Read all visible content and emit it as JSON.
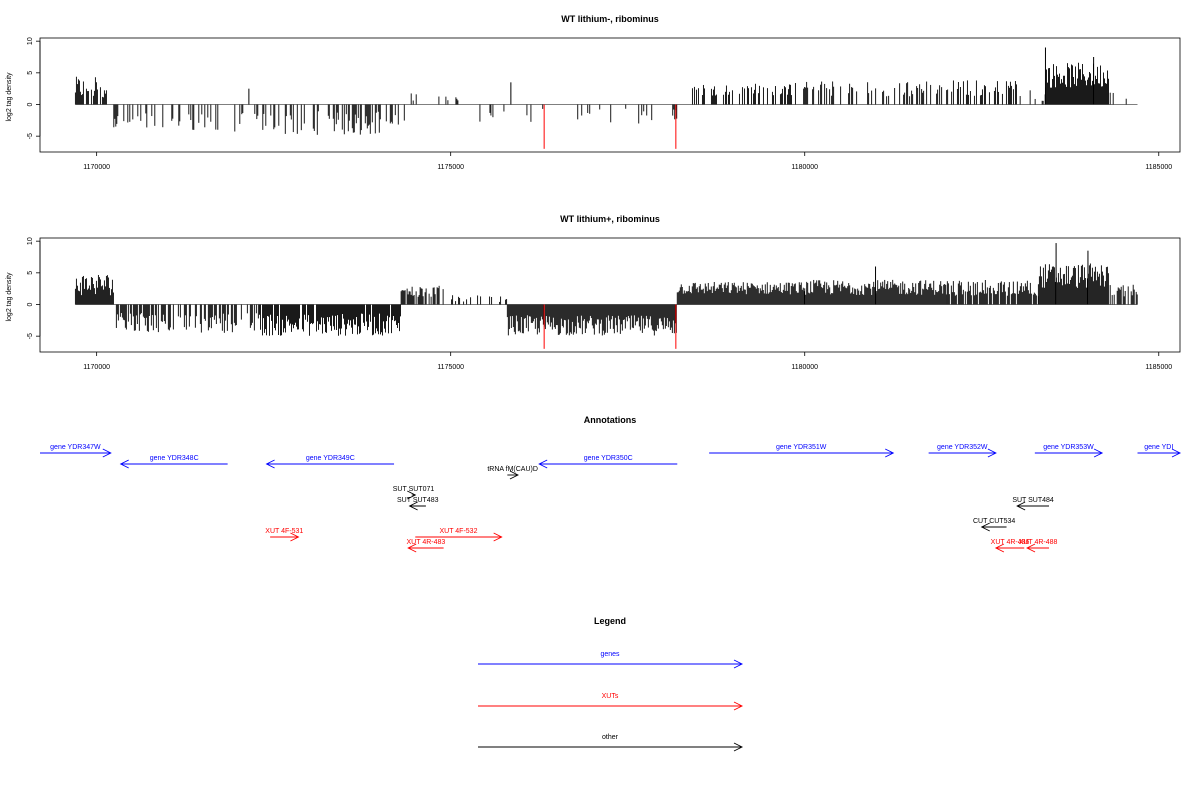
{
  "chart_data": [
    {
      "type": "bar",
      "title": "WT lithium-, ribominus",
      "xlabel": "",
      "ylabel": "log2 tag density",
      "xlim": [
        1169200,
        1185300
      ],
      "ylim": [
        -7.5,
        10.5
      ],
      "x_ticks": [
        1170000,
        1175000,
        1180000,
        1185000
      ],
      "x_tick_labels": [
        "1170000",
        "1175000",
        "1180000",
        "1185000"
      ],
      "y_ticks": [
        -5,
        0,
        5,
        10
      ],
      "y_tick_labels": [
        "-5",
        "0",
        "5",
        "10"
      ],
      "baseline": {
        "x_start": 1169700,
        "x_end": 1184700,
        "y": 0
      },
      "series": [
        {
          "color": "#000000",
          "segments": [
            {
              "x_start": 1169700,
              "x_end": 1170150,
              "mean": 2.6,
              "spread": 1.8,
              "density": 0.8
            },
            {
              "x_start": 1170200,
              "x_end": 1172600,
              "mean": -2.8,
              "spread": 1.6,
              "density": 0.3
            },
            {
              "x_start": 1172650,
              "x_end": 1174350,
              "mean": -2.9,
              "spread": 1.9,
              "density": 0.45
            },
            {
              "x_start": 1174400,
              "x_end": 1174650,
              "mean": 1.2,
              "spread": 0.8,
              "density": 0.15
            },
            {
              "x_start": 1174650,
              "x_end": 1175300,
              "mean": 0.8,
              "spread": 0.5,
              "density": 0.05
            },
            {
              "x_start": 1175300,
              "x_end": 1176300,
              "mean": -2.2,
              "spread": 1.4,
              "density": 0.15
            },
            {
              "x_start": 1176300,
              "x_end": 1178200,
              "mean": -1.8,
              "spread": 1.2,
              "density": 0.12
            },
            {
              "x_start": 1178400,
              "x_end": 1179900,
              "mean": 2.4,
              "spread": 1.0,
              "density": 0.35
            },
            {
              "x_start": 1179900,
              "x_end": 1182100,
              "mean": 2.5,
              "spread": 1.2,
              "density": 0.4
            },
            {
              "x_start": 1182100,
              "x_end": 1183000,
              "mean": 2.6,
              "spread": 1.3,
              "density": 0.4
            },
            {
              "x_start": 1183000,
              "x_end": 1183400,
              "mean": 1.5,
              "spread": 1.0,
              "density": 0.2
            },
            {
              "x_start": 1183400,
              "x_end": 1184300,
              "mean": 4.6,
              "spread": 2.0,
              "density": 1.0
            },
            {
              "x_start": 1184300,
              "x_end": 1184700,
              "mean": 1.5,
              "spread": 0.8,
              "density": 0.2
            }
          ],
          "spikes": [
            {
              "x": 1172150,
              "y": 2.5
            },
            {
              "x": 1175850,
              "y": 3.5
            },
            {
              "x": 1183400,
              "y": 9.0
            },
            {
              "x": 1184080,
              "y": 7.5
            }
          ]
        },
        {
          "color": "#ff0000",
          "spikes": [
            {
              "x": 1176320,
              "y": -7.0
            },
            {
              "x": 1178180,
              "y": -7.0
            }
          ]
        }
      ]
    },
    {
      "type": "bar",
      "title": "WT lithium+, ribominus",
      "xlabel": "",
      "ylabel": "log2 tag density",
      "xlim": [
        1169200,
        1185300
      ],
      "ylim": [
        -7.5,
        10.5
      ],
      "x_ticks": [
        1170000,
        1175000,
        1180000,
        1185000
      ],
      "x_tick_labels": [
        "1170000",
        "1175000",
        "1180000",
        "1185000"
      ],
      "y_ticks": [
        -5,
        0,
        5,
        10
      ],
      "y_tick_labels": [
        "-5",
        "0",
        "5",
        "10"
      ],
      "baseline": {
        "x_start": 1169700,
        "x_end": 1184700,
        "y": 0
      },
      "series": [
        {
          "color": "#000000",
          "segments": [
            {
              "x_start": 1169700,
              "x_end": 1170250,
              "mean": 3.2,
              "spread": 1.8,
              "density": 1.0
            },
            {
              "x_start": 1170250,
              "x_end": 1172300,
              "mean": -2.9,
              "spread": 1.6,
              "density": 0.5
            },
            {
              "x_start": 1172300,
              "x_end": 1174300,
              "mean": -3.2,
              "spread": 1.8,
              "density": 0.9
            },
            {
              "x_start": 1174300,
              "x_end": 1174900,
              "mean": 2.0,
              "spread": 1.0,
              "density": 0.6
            },
            {
              "x_start": 1174900,
              "x_end": 1175800,
              "mean": 1.2,
              "spread": 0.8,
              "density": 0.3
            },
            {
              "x_start": 1175800,
              "x_end": 1178200,
              "mean": -3.3,
              "spread": 1.6,
              "density": 1.0
            },
            {
              "x_start": 1178200,
              "x_end": 1180000,
              "mean": 2.6,
              "spread": 1.0,
              "density": 1.0
            },
            {
              "x_start": 1180000,
              "x_end": 1182000,
              "mean": 2.7,
              "spread": 1.2,
              "density": 1.0
            },
            {
              "x_start": 1182000,
              "x_end": 1183300,
              "mean": 2.6,
              "spread": 1.3,
              "density": 0.9
            },
            {
              "x_start": 1183300,
              "x_end": 1184300,
              "mean": 4.5,
              "spread": 2.0,
              "density": 1.0
            },
            {
              "x_start": 1184300,
              "x_end": 1184700,
              "mean": 2.2,
              "spread": 1.0,
              "density": 0.6
            }
          ],
          "spikes": [
            {
              "x": 1183550,
              "y": 9.7
            },
            {
              "x": 1184000,
              "y": 8.5
            },
            {
              "x": 1181000,
              "y": 6.0
            }
          ]
        },
        {
          "color": "#ff0000",
          "spikes": [
            {
              "x": 1176320,
              "y": -7.0
            },
            {
              "x": 1178180,
              "y": -7.0
            }
          ]
        }
      ]
    }
  ],
  "annotations": {
    "title": "Annotations",
    "features": [
      {
        "label": "gene YDR347W",
        "color": "#0000ff",
        "start": 1169200,
        "end": 1170200,
        "strand": "+",
        "row": 0
      },
      {
        "label": "gene YDR348C",
        "color": "#0000ff",
        "start": 1170340,
        "end": 1171850,
        "strand": "-",
        "row": 1
      },
      {
        "label": "gene YDR349C",
        "color": "#0000ff",
        "start": 1172400,
        "end": 1174200,
        "strand": "-",
        "row": 1
      },
      {
        "label": "tRNA fM(CAU)D",
        "color": "#000000",
        "start": 1175800,
        "end": 1175950,
        "strand": "+",
        "row": 2
      },
      {
        "label": "gene YDR350C",
        "color": "#0000ff",
        "start": 1176250,
        "end": 1178200,
        "strand": "-",
        "row": 1
      },
      {
        "label": "gene YDR351W",
        "color": "#0000ff",
        "start": 1178650,
        "end": 1181250,
        "strand": "+",
        "row": 0
      },
      {
        "label": "gene YDR352W",
        "color": "#0000ff",
        "start": 1181750,
        "end": 1182700,
        "strand": "+",
        "row": 0
      },
      {
        "label": "gene YDR353W",
        "color": "#0000ff",
        "start": 1183250,
        "end": 1184200,
        "strand": "+",
        "row": 0
      },
      {
        "label": "gene YDI",
        "color": "#0000ff",
        "start": 1184700,
        "end": 1185300,
        "strand": "+",
        "row": 0
      },
      {
        "label": "SUT SUT071",
        "color": "#000000",
        "start": 1174450,
        "end": 1174500,
        "strand": "+",
        "row": 3
      },
      {
        "label": "SUT SUT483",
        "color": "#000000",
        "start": 1174420,
        "end": 1174650,
        "strand": "-",
        "row": 4
      },
      {
        "label": "SUT SUT484",
        "color": "#000000",
        "start": 1183000,
        "end": 1183450,
        "strand": "-",
        "row": 4
      },
      {
        "label": "CUT CUT534",
        "color": "#000000",
        "start": 1182500,
        "end": 1182850,
        "strand": "-",
        "row": 5
      },
      {
        "label": "XUT 4F-531",
        "color": "#ff0000",
        "start": 1172450,
        "end": 1172850,
        "strand": "+",
        "row": 6
      },
      {
        "label": "XUT 4F-532",
        "color": "#ff0000",
        "start": 1174500,
        "end": 1175720,
        "strand": "+",
        "row": 6
      },
      {
        "label": "XUT 4R-483",
        "color": "#ff0000",
        "start": 1174400,
        "end": 1174900,
        "strand": "-",
        "row": 7
      },
      {
        "label": "XUT 4R-486",
        "color": "#ff0000",
        "start": 1182700,
        "end": 1183100,
        "strand": "-",
        "row": 7
      },
      {
        "label": "XUT 4R-488",
        "color": "#ff0000",
        "start": 1183140,
        "end": 1183450,
        "strand": "-",
        "row": 7
      }
    ]
  },
  "legend": {
    "title": "Legend",
    "items": [
      {
        "label": "genes",
        "color": "#0000ff"
      },
      {
        "label": "XUTs",
        "color": "#ff0000"
      },
      {
        "label": "other",
        "color": "#000000"
      }
    ]
  }
}
